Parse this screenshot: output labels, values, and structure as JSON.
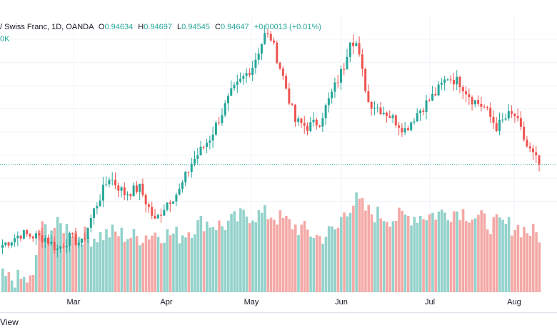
{
  "header": {
    "symbol_text": "/ Swiss Franc, 1D, OANDA",
    "open_label": "O",
    "open_value": "0.94634",
    "high_label": "H",
    "high_value": "0.94697",
    "low_label": "L",
    "low_value": "0.94545",
    "close_label": "C",
    "close_value": "0.94647",
    "change_value": "+0.00013 (+0.01%)",
    "volume_fragment": "0K"
  },
  "footer": {
    "view_text": "View"
  },
  "colors": {
    "up": "#26a69a",
    "down": "#ef5350",
    "up_vol": "#93d2cb",
    "down_vol": "#f4a9a6",
    "grid": "#f0f3fa",
    "price_line": "#26a69a"
  },
  "chart_data": {
    "type": "candlestick",
    "title": "",
    "xlabel": "",
    "ylabel": "",
    "x_tick_labels": [
      "Mar",
      "Apr",
      "May",
      "Jun",
      "Jul",
      "Aug"
    ],
    "last_close": 0.94647,
    "ylim": [
      0.9,
      1.0
    ],
    "legend": "top-left",
    "grid": true,
    "price_waypoints": [
      [
        0,
        0.9175
      ],
      [
        6,
        0.9215
      ],
      [
        14,
        0.92
      ],
      [
        18,
        0.916
      ],
      [
        22,
        0.92
      ],
      [
        26,
        0.918
      ],
      [
        30,
        0.93
      ],
      [
        35,
        0.942
      ],
      [
        40,
        0.936
      ],
      [
        45,
        0.938
      ],
      [
        50,
        0.926
      ],
      [
        54,
        0.933
      ],
      [
        58,
        0.937
      ],
      [
        62,
        0.947
      ],
      [
        68,
        0.956
      ],
      [
        75,
        0.972
      ],
      [
        82,
        0.982
      ],
      [
        86,
        0.993
      ],
      [
        88,
        0.992
      ],
      [
        92,
        0.978
      ],
      [
        96,
        0.962
      ],
      [
        100,
        0.96
      ],
      [
        104,
        0.962
      ],
      [
        108,
        0.972
      ],
      [
        112,
        0.982
      ],
      [
        114,
        0.992
      ],
      [
        116,
        0.99
      ],
      [
        120,
        0.969
      ],
      [
        126,
        0.965
      ],
      [
        132,
        0.959
      ],
      [
        136,
        0.965
      ],
      [
        142,
        0.972
      ],
      [
        146,
        0.978
      ],
      [
        150,
        0.976
      ],
      [
        154,
        0.97
      ],
      [
        158,
        0.967
      ],
      [
        162,
        0.96
      ],
      [
        166,
        0.964
      ],
      [
        168,
        0.964
      ],
      [
        172,
        0.953
      ],
      [
        176,
        0.9465
      ]
    ],
    "volume_waypoints": [
      [
        0,
        0.12
      ],
      [
        10,
        0.1
      ],
      [
        12,
        0.55
      ],
      [
        20,
        0.58
      ],
      [
        28,
        0.48
      ],
      [
        36,
        0.52
      ],
      [
        44,
        0.48
      ],
      [
        50,
        0.52
      ],
      [
        58,
        0.5
      ],
      [
        66,
        0.62
      ],
      [
        72,
        0.58
      ],
      [
        80,
        0.68
      ],
      [
        88,
        0.68
      ],
      [
        96,
        0.58
      ],
      [
        104,
        0.48
      ],
      [
        110,
        0.56
      ],
      [
        112,
        0.72
      ],
      [
        116,
        0.8
      ],
      [
        120,
        0.7
      ],
      [
        128,
        0.65
      ],
      [
        140,
        0.68
      ],
      [
        150,
        0.72
      ],
      [
        160,
        0.6
      ],
      [
        168,
        0.58
      ],
      [
        176,
        0.5
      ]
    ]
  }
}
